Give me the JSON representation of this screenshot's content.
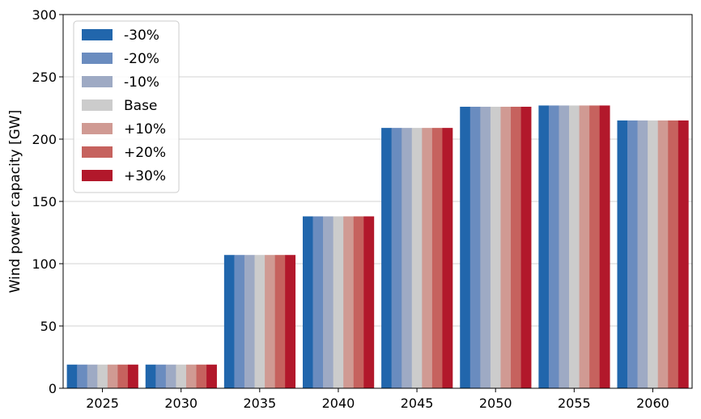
{
  "chart_data": {
    "type": "bar",
    "title": "",
    "xlabel": "",
    "ylabel": "Wind power capacity [GW]",
    "ylim": [
      0,
      300
    ],
    "yticks": [
      0,
      50,
      100,
      150,
      200,
      250,
      300
    ],
    "grid": "horizontal",
    "legend_position": "top-left",
    "categories": [
      "2025",
      "2030",
      "2035",
      "2040",
      "2045",
      "2050",
      "2055",
      "2060"
    ],
    "series": [
      {
        "name": "-30%",
        "color": "#2166ac",
        "values": [
          19,
          19,
          107,
          138,
          209,
          226,
          227,
          215
        ]
      },
      {
        "name": "-20%",
        "color": "#6a8cbf",
        "values": [
          19,
          19,
          107,
          138,
          209,
          226,
          227,
          215
        ]
      },
      {
        "name": "-10%",
        "color": "#9eaac4",
        "values": [
          19,
          19,
          107,
          138,
          209,
          226,
          227,
          215
        ]
      },
      {
        "name": "Base",
        "color": "#cccccc",
        "values": [
          19,
          19,
          107,
          138,
          209,
          226,
          227,
          215
        ]
      },
      {
        "name": "+10%",
        "color": "#d09a93",
        "values": [
          19,
          19,
          107,
          138,
          209,
          226,
          227,
          215
        ]
      },
      {
        "name": "+20%",
        "color": "#c6625e",
        "values": [
          19,
          19,
          107,
          138,
          209,
          226,
          227,
          215
        ]
      },
      {
        "name": "+30%",
        "color": "#b2182b",
        "values": [
          19,
          19,
          107,
          138,
          209,
          226,
          227,
          215
        ]
      }
    ]
  }
}
